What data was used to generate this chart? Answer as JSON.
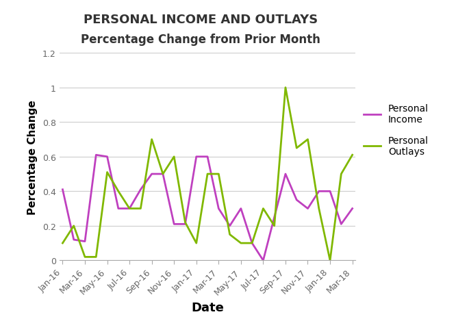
{
  "title_line1": "PERSONAL INCOME AND OUTLAYS",
  "title_line2": "Percentage Change from Prior Month",
  "xlabel": "Date",
  "ylabel": "Percentage Change",
  "xlabels": [
    "Jan-16",
    "Mar-16",
    "May-16",
    "Jul-16",
    "Sep-16",
    "Nov-16",
    "Jan-17",
    "Mar-17",
    "May-17",
    "Jul-17",
    "Sep-17",
    "Nov-17",
    "Jan-18",
    "Mar-18"
  ],
  "income_color": "#bf40bf",
  "outlays_color": "#80b800",
  "ylim": [
    0,
    1.2
  ],
  "yticks": [
    0,
    0.2,
    0.4,
    0.6,
    0.8,
    1.0,
    1.2
  ],
  "background_color": "#ffffff",
  "grid_color": "#cccccc",
  "income_values": [
    0.41,
    0.12,
    0.11,
    0.61,
    0.6,
    0.3,
    0.3,
    0.41,
    0.5,
    0.5,
    0.21,
    0.21,
    0.6,
    0.6,
    0.3,
    0.2,
    0.3,
    0.1,
    0.0,
    0.25,
    0.5,
    0.35,
    0.3,
    0.4,
    0.4,
    0.21,
    0.3
  ],
  "outlays_values": [
    0.1,
    0.2,
    0.02,
    0.02,
    0.51,
    0.4,
    0.3,
    0.3,
    0.7,
    0.5,
    0.6,
    0.22,
    0.1,
    0.5,
    0.5,
    0.15,
    0.1,
    0.1,
    0.3,
    0.2,
    1.0,
    0.65,
    0.7,
    0.3,
    0.0,
    0.5,
    0.61
  ],
  "xtick_positions": [
    0,
    2,
    4,
    6,
    8,
    10,
    12,
    14,
    16,
    18,
    20,
    22,
    24,
    26
  ]
}
